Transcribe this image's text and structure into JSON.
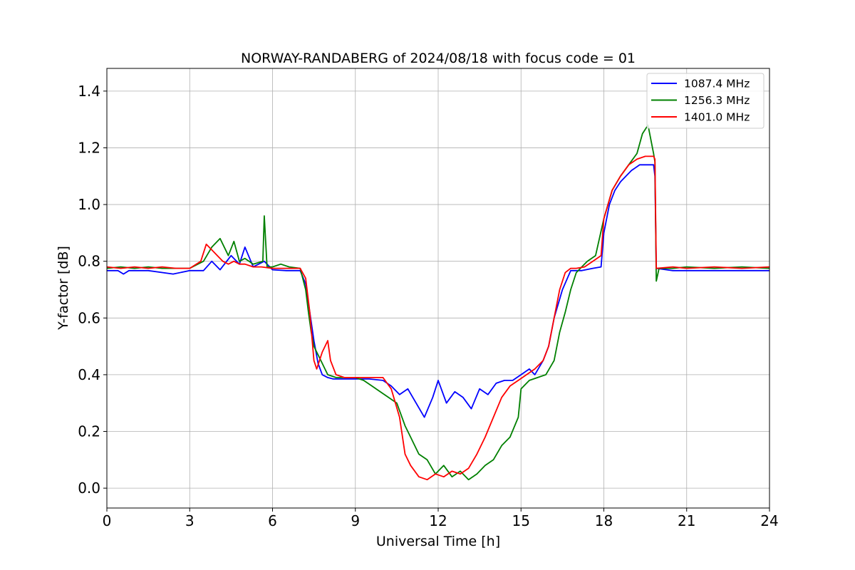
{
  "chart_data": {
    "type": "line",
    "title": "NORWAY-RANDABERG of 2024/08/18 with focus code = 01",
    "xlabel": "Universal Time [h]",
    "ylabel": "Y-factor [dB]",
    "xlim": [
      0,
      24
    ],
    "ylim": [
      -0.07,
      1.48
    ],
    "xticks": [
      0,
      3,
      6,
      9,
      12,
      15,
      18,
      21,
      24
    ],
    "yticks": [
      0.0,
      0.2,
      0.4,
      0.6,
      0.8,
      1.0,
      1.2,
      1.4
    ],
    "xtick_labels": [
      "0",
      "3",
      "6",
      "9",
      "12",
      "15",
      "18",
      "21",
      "24"
    ],
    "ytick_labels": [
      "0.0",
      "0.2",
      "0.4",
      "0.6",
      "0.8",
      "1.0",
      "1.2",
      "1.4"
    ],
    "grid": true,
    "legend_position": "top-right",
    "series": [
      {
        "name": "1087.4 MHz",
        "color": "#0000ff",
        "x": [
          0,
          0.4,
          0.6,
          0.8,
          1.5,
          2.4,
          3.0,
          3.5,
          3.8,
          4.1,
          4.5,
          4.8,
          5.0,
          5.3,
          5.7,
          6.0,
          6.5,
          7.0,
          7.2,
          7.35,
          7.5,
          7.65,
          7.8,
          8.0,
          8.2,
          8.5,
          9.0,
          9.5,
          10.0,
          10.3,
          10.6,
          10.9,
          11.2,
          11.5,
          11.8,
          12.0,
          12.3,
          12.6,
          12.9,
          13.2,
          13.5,
          13.8,
          14.1,
          14.4,
          14.7,
          15.0,
          15.3,
          15.5,
          15.8,
          16.0,
          16.2,
          16.5,
          16.8,
          17.2,
          17.6,
          17.9,
          18.0,
          18.2,
          18.4,
          18.6,
          18.8,
          19.0,
          19.3,
          19.5,
          19.8,
          19.85,
          19.9,
          20.5,
          21.0,
          22.0,
          23.0,
          24.0
        ],
        "y": [
          0.767,
          0.767,
          0.755,
          0.767,
          0.767,
          0.755,
          0.767,
          0.767,
          0.8,
          0.77,
          0.82,
          0.79,
          0.85,
          0.78,
          0.8,
          0.77,
          0.767,
          0.767,
          0.72,
          0.62,
          0.52,
          0.44,
          0.4,
          0.39,
          0.385,
          0.385,
          0.385,
          0.385,
          0.38,
          0.36,
          0.33,
          0.35,
          0.3,
          0.25,
          0.32,
          0.38,
          0.3,
          0.34,
          0.32,
          0.28,
          0.35,
          0.33,
          0.37,
          0.38,
          0.38,
          0.4,
          0.42,
          0.4,
          0.45,
          0.5,
          0.6,
          0.7,
          0.767,
          0.767,
          0.775,
          0.78,
          0.9,
          1.0,
          1.05,
          1.08,
          1.1,
          1.12,
          1.14,
          1.14,
          1.14,
          1.1,
          0.775,
          0.767,
          0.767,
          0.767,
          0.767,
          0.767
        ]
      },
      {
        "name": "1256.3 MHz",
        "color": "#008000",
        "x": [
          0,
          0.5,
          1.0,
          1.5,
          2.0,
          2.5,
          3.0,
          3.5,
          3.8,
          4.1,
          4.4,
          4.6,
          4.8,
          5.0,
          5.3,
          5.65,
          5.7,
          5.8,
          6.0,
          6.3,
          6.6,
          7.0,
          7.2,
          7.3,
          7.4,
          7.5,
          7.6,
          7.7,
          7.9,
          8.0,
          8.3,
          8.5,
          9.0,
          9.3,
          9.6,
          9.9,
          10.2,
          10.5,
          10.8,
          11.0,
          11.3,
          11.6,
          11.9,
          12.2,
          12.5,
          12.8,
          13.1,
          13.4,
          13.7,
          14.0,
          14.3,
          14.6,
          14.9,
          15.0,
          15.3,
          15.6,
          15.9,
          16.2,
          16.4,
          16.6,
          16.8,
          17.0,
          17.2,
          17.4,
          17.7,
          18.0,
          18.3,
          18.6,
          18.9,
          19.2,
          19.4,
          19.6,
          19.8,
          19.85,
          19.9,
          20.0,
          20.5,
          21.0,
          22.0,
          23.0,
          24.0
        ],
        "y": [
          0.775,
          0.78,
          0.775,
          0.78,
          0.775,
          0.775,
          0.775,
          0.8,
          0.85,
          0.88,
          0.82,
          0.87,
          0.8,
          0.81,
          0.79,
          0.8,
          0.96,
          0.78,
          0.78,
          0.79,
          0.78,
          0.775,
          0.7,
          0.62,
          0.55,
          0.5,
          0.48,
          0.46,
          0.42,
          0.4,
          0.39,
          0.39,
          0.39,
          0.38,
          0.36,
          0.34,
          0.32,
          0.3,
          0.22,
          0.18,
          0.12,
          0.1,
          0.05,
          0.08,
          0.04,
          0.06,
          0.03,
          0.05,
          0.08,
          0.1,
          0.15,
          0.18,
          0.25,
          0.35,
          0.38,
          0.39,
          0.4,
          0.45,
          0.55,
          0.62,
          0.7,
          0.76,
          0.78,
          0.8,
          0.82,
          0.95,
          1.05,
          1.1,
          1.14,
          1.18,
          1.25,
          1.28,
          1.18,
          1.15,
          0.73,
          0.775,
          0.775,
          0.78,
          0.775,
          0.78,
          0.775
        ]
      },
      {
        "name": "1401.0 MHz",
        "color": "#ff0000",
        "x": [
          0,
          0.5,
          1.0,
          1.5,
          2.0,
          2.5,
          3.0,
          3.4,
          3.6,
          3.8,
          4.0,
          4.2,
          4.4,
          4.6,
          4.8,
          5.0,
          5.3,
          5.6,
          6.0,
          6.5,
          7.0,
          7.2,
          7.35,
          7.5,
          7.6,
          7.8,
          8.0,
          8.1,
          8.3,
          8.6,
          9.0,
          9.5,
          10.0,
          10.3,
          10.6,
          10.8,
          11.0,
          11.3,
          11.6,
          11.9,
          12.2,
          12.5,
          12.8,
          13.1,
          13.4,
          13.7,
          14.0,
          14.3,
          14.6,
          14.9,
          15.2,
          15.5,
          15.8,
          16.0,
          16.2,
          16.4,
          16.6,
          16.8,
          17.0,
          17.3,
          17.6,
          17.9,
          18.0,
          18.3,
          18.6,
          18.9,
          19.2,
          19.5,
          19.8,
          19.85,
          19.9,
          20.5,
          21.0,
          22.0,
          23.0,
          24.0
        ],
        "y": [
          0.78,
          0.775,
          0.78,
          0.775,
          0.78,
          0.775,
          0.775,
          0.8,
          0.86,
          0.84,
          0.82,
          0.8,
          0.79,
          0.8,
          0.79,
          0.79,
          0.78,
          0.78,
          0.775,
          0.775,
          0.775,
          0.74,
          0.62,
          0.45,
          0.42,
          0.48,
          0.52,
          0.45,
          0.4,
          0.39,
          0.39,
          0.39,
          0.39,
          0.35,
          0.25,
          0.12,
          0.08,
          0.04,
          0.03,
          0.05,
          0.04,
          0.06,
          0.05,
          0.07,
          0.12,
          0.18,
          0.25,
          0.32,
          0.36,
          0.38,
          0.4,
          0.42,
          0.45,
          0.5,
          0.6,
          0.7,
          0.76,
          0.775,
          0.775,
          0.78,
          0.8,
          0.82,
          0.95,
          1.05,
          1.1,
          1.14,
          1.16,
          1.17,
          1.17,
          1.16,
          0.775,
          0.78,
          0.775,
          0.78,
          0.775,
          0.78
        ]
      }
    ]
  }
}
